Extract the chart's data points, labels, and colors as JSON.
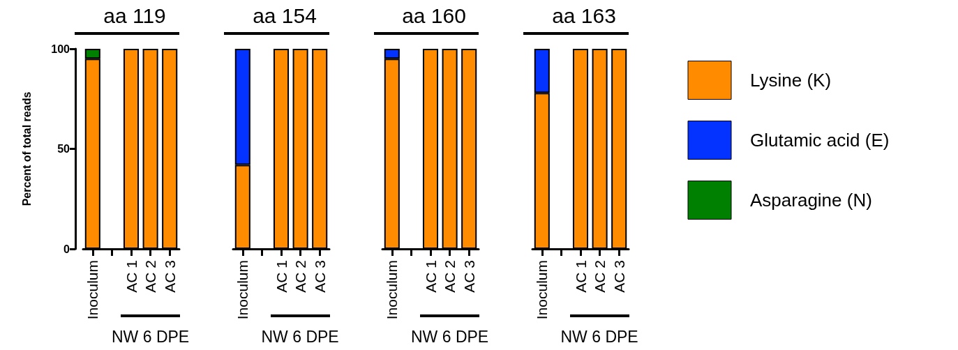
{
  "chart_data": [
    {
      "type": "bar",
      "title": "aa 119",
      "ylabel": "Percent of total reads",
      "categories": [
        "Inoculum",
        null,
        "AC 1",
        "AC 2",
        "AC 3"
      ],
      "stacked": true,
      "ylim": [
        0,
        100
      ],
      "yticks": [
        0,
        50,
        100
      ],
      "grid": false,
      "legend": false,
      "tick_labels": "xy",
      "annotations": [
        "NW 6 DPE"
      ],
      "series": [
        {
          "color": "#ff8c00",
          "values": [
            95,
            null,
            100,
            100,
            100
          ]
        },
        {
          "color": "#0433ff",
          "values": [
            null,
            null,
            null,
            null,
            null
          ]
        },
        {
          "color": "#008000",
          "values": [
            5,
            null,
            null,
            null,
            null
          ]
        }
      ]
    },
    {
      "type": "bar",
      "title": "aa 154",
      "categories": [
        "Inoculum",
        null,
        "AC 1",
        "AC 2",
        "AC 3"
      ],
      "stacked": true,
      "ylim": [
        0,
        100
      ],
      "grid": false,
      "legend": false,
      "tick_labels": "x",
      "annotations": [
        "NW 6 DPE"
      ],
      "series": [
        {
          "color": "#ff8c00",
          "values": [
            42,
            null,
            100,
            100,
            100
          ]
        },
        {
          "color": "#0433ff",
          "values": [
            58,
            null,
            null,
            null,
            null
          ]
        },
        {
          "color": "#008000",
          "values": [
            null,
            null,
            null,
            null,
            null
          ]
        }
      ]
    },
    {
      "type": "bar",
      "title": "aa 160",
      "categories": [
        "Inoculum",
        null,
        "AC 1",
        "AC 2",
        "AC 3"
      ],
      "stacked": true,
      "ylim": [
        0,
        100
      ],
      "grid": false,
      "legend": false,
      "tick_labels": "x",
      "annotations": [
        "NW 6 DPE"
      ],
      "series": [
        {
          "color": "#ff8c00",
          "values": [
            95,
            null,
            100,
            100,
            100
          ]
        },
        {
          "color": "#0433ff",
          "values": [
            5,
            null,
            null,
            null,
            null
          ]
        },
        {
          "color": "#008000",
          "values": [
            null,
            null,
            null,
            null,
            null
          ]
        }
      ]
    },
    {
      "type": "bar",
      "title": "aa 163",
      "categories": [
        "Inoculum",
        null,
        "AC 1",
        "AC 2",
        "AC 3"
      ],
      "stacked": true,
      "ylim": [
        0,
        100
      ],
      "grid": false,
      "legend": "right",
      "tick_labels": "x",
      "annotations": [
        "NW 6 DPE"
      ],
      "series": [
        {
          "name": "Lysine (K)",
          "color": "#ff8c00",
          "values": [
            78,
            null,
            100,
            100,
            100
          ]
        },
        {
          "name": "Glutamic acid (E)",
          "color": "#0433ff",
          "values": [
            22,
            null,
            null,
            null,
            null
          ]
        },
        {
          "name": "Asparagine (N)",
          "color": "#008000",
          "values": [
            null,
            null,
            null,
            null,
            null
          ]
        }
      ]
    }
  ]
}
